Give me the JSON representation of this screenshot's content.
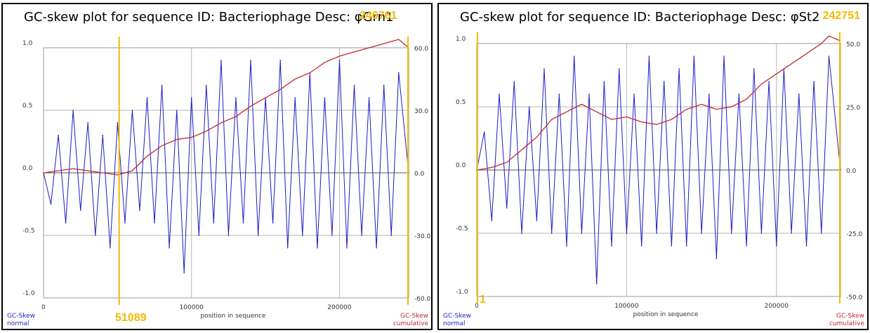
{
  "accent_yellow": "#f5b800",
  "normal_color": "#1c1cc8",
  "cumulative_color": "#c0282d",
  "chart_data": [
    {
      "type": "line",
      "title": "GC-skew plot for sequence ID: Bacteriophage Desc: φGrn1",
      "highlight_top": "246761",
      "highlight_bottom": "51089",
      "highlight_x_values": [
        51089,
        246761
      ],
      "xlabel": "position in sequence",
      "left_axis_label": [
        "GC-Skew",
        "normal"
      ],
      "right_axis_label": [
        "GC-Skew",
        "cumulative"
      ],
      "xlim": [
        0,
        246761
      ],
      "ylim_left": [
        -1.0,
        1.0
      ],
      "ylim_right": [
        -60.0,
        60.0
      ],
      "x_ticks": [
        "0",
        "100000",
        "200000"
      ],
      "x_tick_values": [
        0,
        100000,
        200000
      ],
      "y_ticks_left": [
        "1.0",
        "0.5",
        "0.0",
        "-0.5",
        "-1.0"
      ],
      "y_ticks_right": [
        "60.0",
        "30.0",
        "0.0",
        "-30.0",
        "-60.0"
      ],
      "grid": true,
      "series": [
        {
          "role": "normal",
          "note_x": "position in sequence",
          "points": [
            [
              0,
              0.0
            ],
            [
              5000,
              -0.25
            ],
            [
              10000,
              0.3
            ],
            [
              15000,
              -0.4
            ],
            [
              20000,
              0.5
            ],
            [
              25000,
              -0.3
            ],
            [
              30000,
              0.4
            ],
            [
              35000,
              -0.5
            ],
            [
              40000,
              0.3
            ],
            [
              45000,
              -0.6
            ],
            [
              50000,
              0.4
            ],
            [
              55000,
              -0.4
            ],
            [
              60000,
              0.5
            ],
            [
              65000,
              -0.3
            ],
            [
              70000,
              0.6
            ],
            [
              75000,
              -0.4
            ],
            [
              80000,
              0.7
            ],
            [
              85000,
              -0.6
            ],
            [
              90000,
              0.5
            ],
            [
              95000,
              -0.8
            ],
            [
              100000,
              0.6
            ],
            [
              105000,
              -0.5
            ],
            [
              110000,
              0.7
            ],
            [
              115000,
              -0.4
            ],
            [
              120000,
              0.9
            ],
            [
              125000,
              -0.5
            ],
            [
              130000,
              0.6
            ],
            [
              135000,
              -0.4
            ],
            [
              140000,
              0.9
            ],
            [
              145000,
              -0.5
            ],
            [
              150000,
              0.6
            ],
            [
              155000,
              -0.4
            ],
            [
              160000,
              0.9
            ],
            [
              165000,
              -0.6
            ],
            [
              170000,
              0.6
            ],
            [
              175000,
              -0.5
            ],
            [
              180000,
              0.8
            ],
            [
              185000,
              -0.6
            ],
            [
              190000,
              0.6
            ],
            [
              195000,
              -0.5
            ],
            [
              200000,
              0.9
            ],
            [
              205000,
              -0.6
            ],
            [
              210000,
              0.7
            ],
            [
              215000,
              -0.5
            ],
            [
              220000,
              0.6
            ],
            [
              225000,
              -0.6
            ],
            [
              230000,
              0.7
            ],
            [
              235000,
              -0.5
            ],
            [
              240000,
              0.8
            ],
            [
              246761,
              0.0
            ]
          ]
        },
        {
          "role": "cumulative",
          "points": [
            [
              0,
              0
            ],
            [
              20000,
              2
            ],
            [
              40000,
              0
            ],
            [
              50000,
              -1
            ],
            [
              60000,
              1
            ],
            [
              70000,
              8
            ],
            [
              80000,
              13
            ],
            [
              90000,
              16
            ],
            [
              100000,
              17
            ],
            [
              110000,
              20
            ],
            [
              120000,
              24
            ],
            [
              130000,
              27
            ],
            [
              140000,
              32
            ],
            [
              150000,
              36
            ],
            [
              160000,
              40
            ],
            [
              170000,
              45
            ],
            [
              180000,
              48
            ],
            [
              190000,
              53
            ],
            [
              200000,
              56
            ],
            [
              210000,
              58
            ],
            [
              220000,
              60
            ],
            [
              230000,
              62
            ],
            [
              240000,
              64
            ],
            [
              246761,
              60
            ]
          ]
        }
      ]
    },
    {
      "type": "line",
      "title": "GC-skew plot for sequence ID: Bacteriophage Desc: φSt2",
      "highlight_top": "242751",
      "highlight_bottom": "1",
      "highlight_x_values": [
        0,
        242751
      ],
      "xlabel": "position in sequence",
      "left_axis_label": [
        "GC-Skew",
        "normal"
      ],
      "right_axis_label": [
        "GC-Skew",
        "cumulative"
      ],
      "xlim": [
        0,
        242751
      ],
      "ylim_left": [
        -1.0,
        1.0
      ],
      "ylim_right": [
        -50.0,
        50.0
      ],
      "x_ticks": [
        "0",
        "100000",
        "200000"
      ],
      "x_tick_values": [
        0,
        100000,
        200000
      ],
      "y_ticks_left": [
        "1.0",
        "0.5",
        "0.0",
        "-0.5",
        "-1.0"
      ],
      "y_ticks_right": [
        "50.0",
        "25.0",
        "0.0",
        "-25.0",
        "-50.0"
      ],
      "grid": true,
      "series": [
        {
          "role": "normal",
          "points": [
            [
              0,
              0.0
            ],
            [
              5000,
              0.3
            ],
            [
              10000,
              -0.4
            ],
            [
              15000,
              0.6
            ],
            [
              20000,
              -0.3
            ],
            [
              25000,
              0.7
            ],
            [
              30000,
              -0.5
            ],
            [
              35000,
              0.5
            ],
            [
              40000,
              -0.4
            ],
            [
              45000,
              0.8
            ],
            [
              50000,
              -0.5
            ],
            [
              55000,
              0.6
            ],
            [
              60000,
              -0.6
            ],
            [
              65000,
              0.9
            ],
            [
              70000,
              -0.5
            ],
            [
              75000,
              0.6
            ],
            [
              80000,
              -0.9
            ],
            [
              85000,
              0.7
            ],
            [
              90000,
              -0.6
            ],
            [
              95000,
              0.8
            ],
            [
              100000,
              -0.5
            ],
            [
              105000,
              0.6
            ],
            [
              110000,
              -0.6
            ],
            [
              115000,
              0.9
            ],
            [
              120000,
              -0.5
            ],
            [
              125000,
              0.7
            ],
            [
              130000,
              -0.6
            ],
            [
              135000,
              0.8
            ],
            [
              140000,
              -0.6
            ],
            [
              145000,
              0.9
            ],
            [
              150000,
              -0.5
            ],
            [
              155000,
              0.6
            ],
            [
              160000,
              -0.7
            ],
            [
              165000,
              0.9
            ],
            [
              170000,
              -0.5
            ],
            [
              175000,
              0.6
            ],
            [
              180000,
              -0.6
            ],
            [
              185000,
              0.8
            ],
            [
              190000,
              -0.5
            ],
            [
              195000,
              0.7
            ],
            [
              200000,
              -0.6
            ],
            [
              205000,
              0.8
            ],
            [
              210000,
              -0.5
            ],
            [
              215000,
              0.6
            ],
            [
              220000,
              -0.6
            ],
            [
              225000,
              0.7
            ],
            [
              230000,
              -0.5
            ],
            [
              235000,
              0.9
            ],
            [
              242751,
              0.0
            ]
          ]
        },
        {
          "role": "cumulative",
          "points": [
            [
              0,
              0
            ],
            [
              10000,
              1
            ],
            [
              20000,
              3
            ],
            [
              30000,
              8
            ],
            [
              40000,
              13
            ],
            [
              50000,
              20
            ],
            [
              60000,
              23
            ],
            [
              70000,
              26
            ],
            [
              80000,
              23
            ],
            [
              90000,
              20
            ],
            [
              100000,
              21
            ],
            [
              110000,
              19
            ],
            [
              120000,
              18
            ],
            [
              130000,
              20
            ],
            [
              140000,
              24
            ],
            [
              150000,
              26
            ],
            [
              160000,
              24
            ],
            [
              170000,
              25
            ],
            [
              180000,
              28
            ],
            [
              190000,
              34
            ],
            [
              200000,
              38
            ],
            [
              210000,
              42
            ],
            [
              220000,
              46
            ],
            [
              230000,
              50
            ],
            [
              235000,
              53
            ],
            [
              242751,
              51
            ]
          ]
        }
      ]
    }
  ]
}
